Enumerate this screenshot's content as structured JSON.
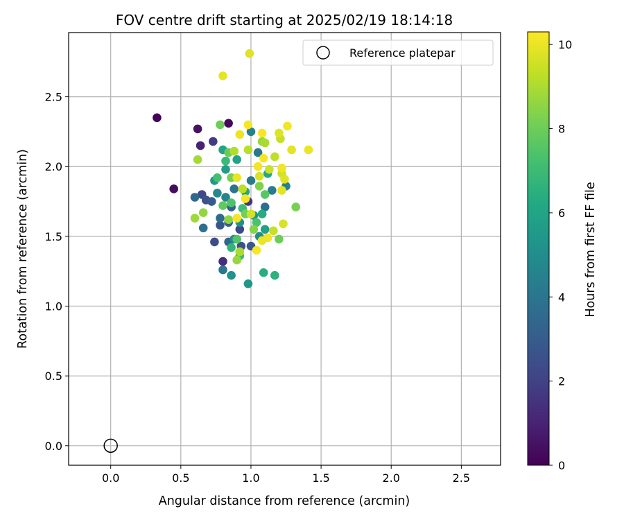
{
  "chart_data": {
    "type": "scatter",
    "title": "FOV centre drift starting at 2025/02/19 18:14:18",
    "xlabel": "Angular distance from reference (arcmin)",
    "ylabel": "Rotation from reference (arcmin)",
    "xlim": [
      -0.3,
      2.78
    ],
    "ylim": [
      -0.14,
      2.96
    ],
    "xticks": [
      "0.0",
      "0.5",
      "1.0",
      "1.5",
      "2.0",
      "2.5"
    ],
    "yticks": [
      "0.0",
      "0.5",
      "1.0",
      "1.5",
      "2.0",
      "2.5"
    ],
    "grid": true,
    "legend": {
      "placement": "top-right",
      "entries": [
        "Reference platepar"
      ]
    },
    "reference_point": {
      "x": 0.0,
      "y": 0.0
    },
    "colorbar": {
      "label": "Hours from first FF file",
      "range": [
        0,
        10.3
      ],
      "ticks": [
        "0",
        "2",
        "4",
        "6",
        "8",
        "10"
      ],
      "colormap": "viridis"
    },
    "series": [
      {
        "points": [
          [
            0.33,
            2.35,
            0.1
          ],
          [
            0.45,
            1.84,
            0.3
          ],
          [
            0.84,
            2.31,
            0.2
          ],
          [
            0.62,
            2.27,
            0.5
          ],
          [
            0.64,
            2.15,
            1.0
          ],
          [
            0.73,
            2.18,
            1.8
          ],
          [
            0.65,
            1.8,
            2.2
          ],
          [
            0.68,
            1.76,
            2.6
          ],
          [
            0.72,
            1.75,
            2.9
          ],
          [
            0.8,
            1.32,
            1.4
          ],
          [
            0.74,
            1.46,
            2.4
          ],
          [
            0.78,
            1.58,
            2.7
          ],
          [
            0.84,
            1.6,
            3.0
          ],
          [
            0.86,
            1.71,
            3.1
          ],
          [
            0.98,
            1.75,
            1.6
          ],
          [
            0.93,
            1.43,
            2.5
          ],
          [
            1.0,
            1.43,
            2.8
          ],
          [
            0.92,
            1.55,
            2.2
          ],
          [
            0.6,
            1.78,
            3.5
          ],
          [
            0.66,
            1.56,
            3.8
          ],
          [
            0.8,
            1.26,
            4.0
          ],
          [
            0.84,
            1.46,
            3.3
          ],
          [
            0.78,
            1.63,
            3.6
          ],
          [
            0.88,
            1.84,
            3.9
          ],
          [
            1.0,
            1.9,
            4.2
          ],
          [
            1.0,
            2.25,
            4.5
          ],
          [
            1.05,
            2.1,
            4.1
          ],
          [
            1.1,
            1.71,
            3.7
          ],
          [
            1.15,
            1.83,
            4.3
          ],
          [
            1.25,
            1.86,
            4.4
          ],
          [
            0.82,
            1.78,
            4.6
          ],
          [
            0.76,
            1.81,
            4.8
          ],
          [
            0.86,
            1.22,
            5.2
          ],
          [
            0.98,
            1.16,
            5.4
          ],
          [
            0.88,
            1.48,
            5.0
          ],
          [
            0.92,
            1.6,
            5.1
          ],
          [
            1.06,
            1.5,
            4.9
          ],
          [
            1.02,
            1.65,
            5.3
          ],
          [
            0.74,
            1.9,
            5.5
          ],
          [
            0.82,
            1.98,
            5.7
          ],
          [
            0.9,
            2.05,
            5.9
          ],
          [
            0.96,
            1.82,
            6.1
          ],
          [
            1.12,
            1.95,
            6.2
          ],
          [
            1.08,
            1.66,
            6.3
          ],
          [
            1.1,
            1.55,
            5.8
          ],
          [
            0.8,
            2.12,
            6.0
          ],
          [
            1.09,
            1.24,
            6.4
          ],
          [
            1.17,
            1.22,
            6.6
          ],
          [
            0.86,
            1.42,
            6.7
          ],
          [
            0.92,
            1.36,
            7.0
          ],
          [
            0.82,
            2.04,
            6.9
          ],
          [
            0.76,
            1.92,
            7.2
          ],
          [
            0.86,
            1.74,
            7.4
          ],
          [
            0.94,
            1.7,
            7.1
          ],
          [
            1.04,
            1.6,
            7.3
          ],
          [
            1.1,
            1.8,
            7.6
          ],
          [
            0.8,
            1.72,
            7.8
          ],
          [
            0.9,
            1.48,
            7.5
          ],
          [
            0.78,
            2.3,
            8.0
          ],
          [
            0.86,
            1.92,
            8.2
          ],
          [
            0.84,
            2.1,
            7.9
          ],
          [
            0.96,
            1.66,
            8.1
          ],
          [
            1.06,
            1.86,
            8.3
          ],
          [
            1.02,
            1.55,
            8.4
          ],
          [
            1.2,
            1.48,
            8.0
          ],
          [
            1.32,
            1.71,
            8.2
          ],
          [
            0.66,
            1.67,
            8.6
          ],
          [
            0.6,
            1.63,
            8.8
          ],
          [
            0.84,
            1.62,
            8.5
          ],
          [
            0.9,
            1.33,
            8.7
          ],
          [
            0.92,
            1.39,
            9.0
          ],
          [
            0.62,
            2.05,
            8.9
          ],
          [
            0.88,
            2.11,
            9.1
          ],
          [
            0.98,
            2.12,
            9.2
          ],
          [
            1.08,
            2.18,
            8.7
          ],
          [
            1.1,
            2.17,
            9.0
          ],
          [
            1.17,
            2.07,
            9.3
          ],
          [
            1.21,
            2.2,
            9.4
          ],
          [
            1.22,
            1.95,
            9.6
          ],
          [
            1.13,
            1.98,
            9.5
          ],
          [
            1.06,
            1.93,
            9.7
          ],
          [
            0.94,
            1.84,
            9.3
          ],
          [
            1.24,
            1.91,
            9.8
          ],
          [
            1.29,
            2.12,
            9.9
          ],
          [
            1.41,
            2.12,
            10.0
          ],
          [
            1.26,
            2.29,
            10.1
          ],
          [
            1.2,
            2.24,
            9.8
          ],
          [
            1.08,
            2.24,
            10.2
          ],
          [
            0.99,
            2.81,
            9.8
          ],
          [
            0.8,
            2.65,
            9.9
          ],
          [
            0.98,
            2.3,
            10.2
          ],
          [
            0.92,
            2.23,
            10.0
          ],
          [
            1.05,
            2.0,
            10.1
          ],
          [
            1.22,
            1.99,
            10.1
          ],
          [
            1.09,
            2.06,
            10.2
          ],
          [
            0.9,
            1.92,
            10.0
          ],
          [
            0.96,
            1.77,
            10.2
          ],
          [
            1.22,
            1.83,
            9.9
          ],
          [
            1.23,
            1.59,
            9.7
          ],
          [
            1.12,
            1.49,
            10.1
          ],
          [
            1.08,
            1.47,
            10.0
          ],
          [
            1.04,
            1.4,
            10.2
          ],
          [
            0.9,
            1.63,
            10.1
          ],
          [
            1.0,
            1.66,
            9.6
          ],
          [
            1.16,
            1.54,
            9.4
          ]
        ]
      }
    ]
  }
}
